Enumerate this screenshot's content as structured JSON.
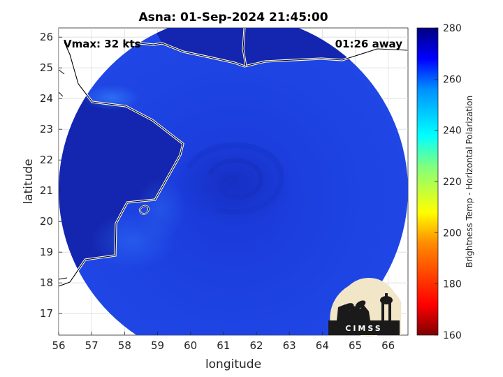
{
  "title": "Asna: 01-Sep-2024 21:45:00",
  "vmax_label": "Vmax: 32 kts",
  "time_label": "01:26 away",
  "x_axis": {
    "label": "longitude",
    "range": [
      56,
      66.6
    ],
    "ticks": [
      "56",
      "57",
      "58",
      "59",
      "60",
      "61",
      "62",
      "63",
      "64",
      "65",
      "66"
    ]
  },
  "y_axis": {
    "label": "latitude",
    "range": [
      16.3,
      26.3
    ],
    "ticks": [
      "17",
      "18",
      "19",
      "20",
      "21",
      "22",
      "23",
      "24",
      "25",
      "26"
    ]
  },
  "colorbar": {
    "label": "Brightness Temp - Horizontal Polarization",
    "range": [
      160,
      280
    ],
    "ticks": [
      "160",
      "180",
      "200",
      "220",
      "240",
      "260",
      "280"
    ]
  },
  "logo_text": "CIMSS",
  "colors": {
    "deep_blue": "#1224a8",
    "mid_blue": "#1b3fe0",
    "light_blue": "#2a6cf4",
    "grid": "#dcdcdc"
  },
  "storm_center": {
    "lon": 61.3,
    "lat": 21.4
  }
}
